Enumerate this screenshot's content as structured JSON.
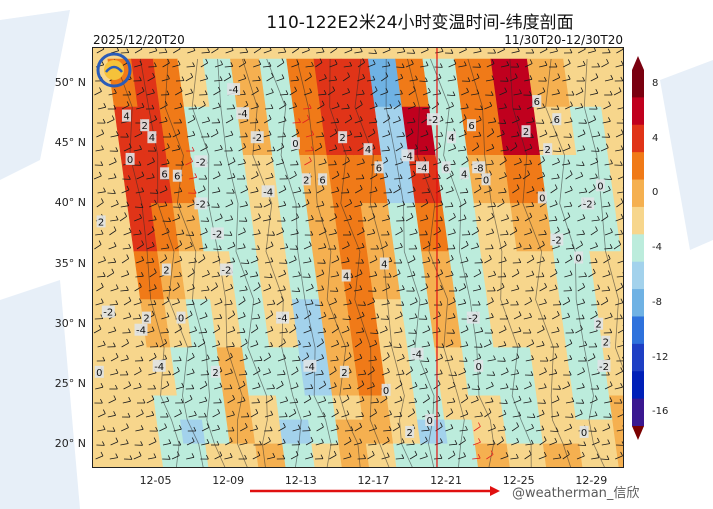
{
  "chart_data": {
    "type": "heatmap",
    "title": "110-122E2米24小时变温时间-纬度剖面",
    "subtitle_left": "2025/12/20T20",
    "subtitle_right": "11/30T20-12/30T20",
    "y_ticks": [
      "50° N",
      "45° N",
      "40° N",
      "35° N",
      "30° N",
      "25° N",
      "20° N"
    ],
    "y_tick_values": [
      50,
      45,
      40,
      35,
      30,
      25,
      20
    ],
    "ylim": [
      18,
      53
    ],
    "x_ticks": [
      "12-05",
      "12-09",
      "12-13",
      "12-17",
      "12-21",
      "12-25",
      "12-29"
    ],
    "x_tick_values": [
      5,
      9,
      13,
      17,
      21,
      25,
      29
    ],
    "xlim": [
      1.5,
      30.8
    ],
    "vertical_marker_x": 20.5,
    "colorbar": {
      "ticks": [
        "8",
        "4",
        "0",
        "-4",
        "-8",
        "-12",
        "-16"
      ],
      "tick_values": [
        8,
        4,
        0,
        -4,
        -8,
        -12,
        -16
      ],
      "range": [
        -18,
        10
      ],
      "colors": {
        "10": "#7a0010",
        "8": "#c0001e",
        "6": "#e03418",
        "4": "#f07a18",
        "2": "#f5b050",
        "0": "#f7d68c",
        "-2": "#bcecdc",
        "-4": "#a3d2ec",
        "-6": "#6fb2e4",
        "-8": "#2e72dc",
        "-10": "#1e3fc4",
        "-12": "#0020b8",
        "-14": "#3a1890",
        "-16": "#5a1070",
        "-18": "#7a0000"
      }
    },
    "bands": [
      {
        "day": 4.6,
        "values": [
          2,
          4,
          6,
          6,
          4,
          2,
          0,
          -2,
          -2,
          -2,
          -2
        ]
      },
      {
        "day": 5.8,
        "values": [
          4,
          6,
          6,
          4,
          2,
          0,
          -2,
          -2,
          -4,
          -4,
          -2
        ]
      },
      {
        "day": 7.0,
        "values": [
          4,
          4,
          4,
          2,
          0,
          -2,
          -2,
          -2,
          -2,
          -2,
          0
        ]
      },
      {
        "day": 8.5,
        "values": [
          0,
          -2,
          -4,
          -2,
          -2,
          0,
          0,
          2,
          2,
          0,
          0
        ]
      },
      {
        "day": 9.8,
        "values": [
          -2,
          -4,
          -2,
          -2,
          -2,
          -2,
          -2,
          -2,
          0,
          0,
          2
        ]
      },
      {
        "day": 11.5,
        "values": [
          2,
          2,
          0,
          0,
          0,
          0,
          -2,
          -2,
          -4,
          -4,
          -2
        ]
      },
      {
        "day": 13.0,
        "values": [
          -2,
          -2,
          -2,
          -2,
          -2,
          -4,
          -4,
          -4,
          -2,
          -2,
          0
        ]
      },
      {
        "day": 14.5,
        "values": [
          2,
          4,
          2,
          2,
          2,
          2,
          2,
          0,
          0,
          2,
          2
        ]
      },
      {
        "day": 16.0,
        "values": [
          4,
          6,
          4,
          4,
          4,
          4,
          4,
          2,
          2,
          0,
          -2
        ]
      },
      {
        "day": 17.5,
        "values": [
          4,
          6,
          4,
          2,
          2,
          0,
          0,
          0,
          0,
          -2,
          -4
        ]
      },
      {
        "day": 19.0,
        "values": [
          -8,
          -6,
          -4,
          -4,
          -2,
          -2,
          -2,
          -2,
          -4,
          -4,
          -2
        ]
      },
      {
        "day": 20.5,
        "values": [
          2,
          6,
          8,
          4,
          2,
          2,
          0,
          0,
          -2,
          -2,
          -2
        ]
      },
      {
        "day": 22.0,
        "values": [
          -2,
          -4,
          -2,
          -2,
          -2,
          -2,
          -2,
          -2,
          0,
          0,
          2
        ]
      },
      {
        "day": 24.0,
        "values": [
          2,
          4,
          2,
          0,
          0,
          0,
          -2,
          -2,
          -4,
          -2,
          0
        ]
      },
      {
        "day": 26.0,
        "values": [
          6,
          8,
          6,
          2,
          0,
          0,
          0,
          0,
          0,
          0,
          2
        ]
      },
      {
        "day": 28.0,
        "values": [
          2,
          0,
          -2,
          -2,
          -4,
          -2,
          -2,
          -2,
          -2,
          0,
          0
        ]
      },
      {
        "day": 30.0,
        "values": [
          0,
          -2,
          -2,
          -2,
          -2,
          0,
          0,
          0,
          2,
          2,
          2
        ]
      }
    ],
    "band_lats": [
      52,
      48,
      44,
      40,
      36,
      32,
      28,
      24,
      22,
      20,
      18
    ],
    "contour_labels": [
      {
        "day": 4.8,
        "lat": 45.5,
        "text": "4"
      },
      {
        "day": 5.5,
        "lat": 42.5,
        "text": "6"
      },
      {
        "day": 6.2,
        "lat": 42.3,
        "text": "6"
      },
      {
        "day": 4.4,
        "lat": 46.5,
        "text": "2"
      },
      {
        "day": 3.4,
        "lat": 47.3,
        "text": "4"
      },
      {
        "day": 3.6,
        "lat": 43.7,
        "text": "0"
      },
      {
        "day": 4.5,
        "lat": 30.5,
        "text": "2"
      },
      {
        "day": 4.2,
        "lat": 29.5,
        "text": "-4"
      },
      {
        "day": 5.2,
        "lat": 26.5,
        "text": "-4"
      },
      {
        "day": 5.6,
        "lat": 34.5,
        "text": "2"
      },
      {
        "day": 6.4,
        "lat": 30.5,
        "text": "0"
      },
      {
        "day": 7.5,
        "lat": 43.5,
        "text": "-2"
      },
      {
        "day": 7.5,
        "lat": 40.0,
        "text": "-2"
      },
      {
        "day": 8.4,
        "lat": 37.5,
        "text": "-2"
      },
      {
        "day": 8.9,
        "lat": 34.5,
        "text": "-2"
      },
      {
        "day": 8.3,
        "lat": 26.0,
        "text": "2"
      },
      {
        "day": 9.3,
        "lat": 49.5,
        "text": "-4"
      },
      {
        "day": 9.8,
        "lat": 47.5,
        "text": "-4"
      },
      {
        "day": 10.6,
        "lat": 45.5,
        "text": "-2"
      },
      {
        "day": 11.2,
        "lat": 41.0,
        "text": "-4"
      },
      {
        "day": 12.0,
        "lat": 30.5,
        "text": "-4"
      },
      {
        "day": 12.7,
        "lat": 45.0,
        "text": "0"
      },
      {
        "day": 13.3,
        "lat": 42.0,
        "text": "2"
      },
      {
        "day": 14.2,
        "lat": 42.0,
        "text": "6"
      },
      {
        "day": 13.5,
        "lat": 26.5,
        "text": "-4"
      },
      {
        "day": 15.5,
        "lat": 34.0,
        "text": "4"
      },
      {
        "day": 15.4,
        "lat": 26.0,
        "text": "2"
      },
      {
        "day": 15.3,
        "lat": 45.5,
        "text": "2"
      },
      {
        "day": 16.7,
        "lat": 44.5,
        "text": "4"
      },
      {
        "day": 17.3,
        "lat": 43.0,
        "text": "6"
      },
      {
        "day": 17.6,
        "lat": 35.0,
        "text": "4"
      },
      {
        "day": 17.7,
        "lat": 24.5,
        "text": "0"
      },
      {
        "day": 18.9,
        "lat": 44.0,
        "text": "-4"
      },
      {
        "day": 19.7,
        "lat": 43.0,
        "text": "-4"
      },
      {
        "day": 20.3,
        "lat": 47.0,
        "text": "-2"
      },
      {
        "day": 19.4,
        "lat": 27.5,
        "text": "-4"
      },
      {
        "day": 19.0,
        "lat": 21.0,
        "text": "2"
      },
      {
        "day": 20.1,
        "lat": 22.0,
        "text": "0"
      },
      {
        "day": 21.3,
        "lat": 45.5,
        "text": "4"
      },
      {
        "day": 21.0,
        "lat": 43.0,
        "text": "6"
      },
      {
        "day": 22.0,
        "lat": 42.5,
        "text": "4"
      },
      {
        "day": 22.8,
        "lat": 43.0,
        "text": "-8"
      },
      {
        "day": 23.2,
        "lat": 42.0,
        "text": "0"
      },
      {
        "day": 22.5,
        "lat": 30.5,
        "text": "-2"
      },
      {
        "day": 22.4,
        "lat": 46.5,
        "text": "6"
      },
      {
        "day": 22.8,
        "lat": 26.5,
        "text": "0"
      },
      {
        "day": 26.0,
        "lat": 48.5,
        "text": "6"
      },
      {
        "day": 25.4,
        "lat": 46.0,
        "text": "2"
      },
      {
        "day": 26.6,
        "lat": 44.5,
        "text": "2"
      },
      {
        "day": 27.1,
        "lat": 47.0,
        "text": "6"
      },
      {
        "day": 26.3,
        "lat": 40.5,
        "text": "0"
      },
      {
        "day": 27.1,
        "lat": 37.0,
        "text": "-2"
      },
      {
        "day": 28.3,
        "lat": 35.5,
        "text": "0"
      },
      {
        "day": 28.8,
        "lat": 40.0,
        "text": "-2"
      },
      {
        "day": 29.5,
        "lat": 41.5,
        "text": "0"
      },
      {
        "day": 29.4,
        "lat": 30.0,
        "text": "2"
      },
      {
        "day": 29.8,
        "lat": 28.5,
        "text": "2"
      },
      {
        "day": 28.6,
        "lat": 21.0,
        "text": "0"
      },
      {
        "day": 29.7,
        "lat": 26.5,
        "text": "-2"
      },
      {
        "day": 2.4,
        "lat": 31.0,
        "text": "-2"
      },
      {
        "day": 1.9,
        "lat": 26.0,
        "text": "0"
      },
      {
        "day": 2.0,
        "lat": 38.5,
        "text": "2"
      }
    ]
  },
  "watermark": "@weatherman_信欣",
  "logo_name": "weather-logo"
}
